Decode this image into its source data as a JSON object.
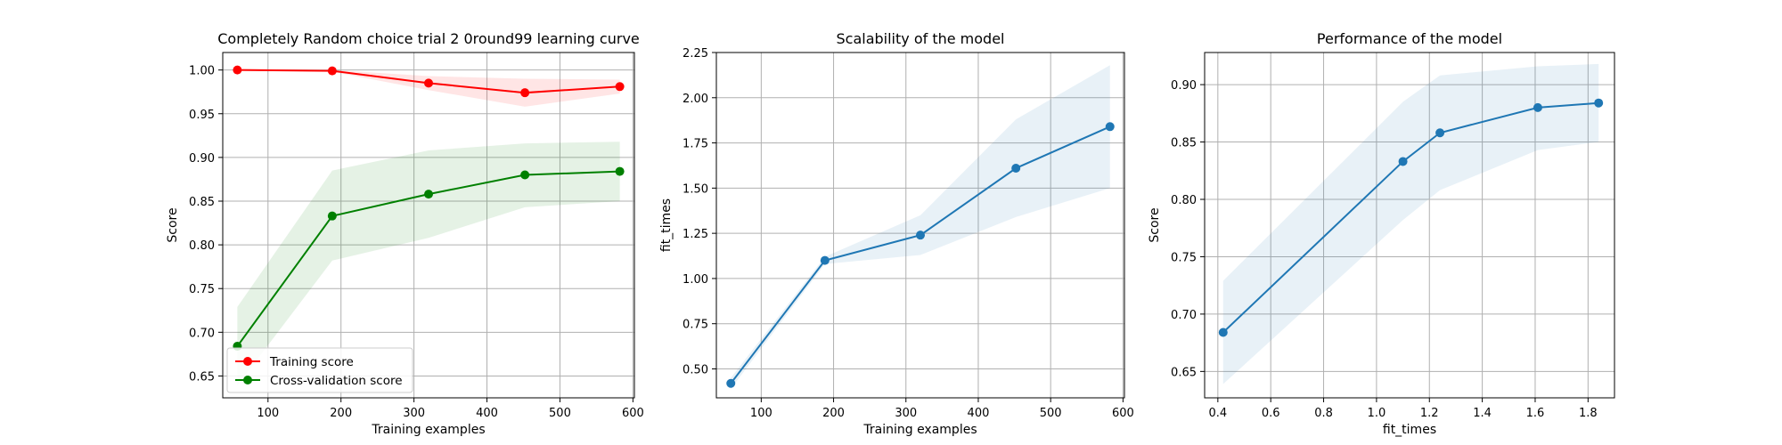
{
  "chart_data": [
    {
      "type": "line",
      "title": "Completely Random choice trial 2 0round99 learning curve",
      "xlabel": "Training examples",
      "ylabel": "Score",
      "xlim": [
        38,
        602
      ],
      "ylim": [
        0.625,
        1.02
      ],
      "xticks": [
        100,
        200,
        300,
        400,
        500,
        600
      ],
      "yticks": [
        0.65,
        0.7,
        0.75,
        0.8,
        0.85,
        0.9,
        0.95,
        1.0
      ],
      "grid": true,
      "legend": {
        "position": "lower-left"
      },
      "series": [
        {
          "name": "Training score",
          "color": "#ff0000",
          "x": [
            58,
            188,
            320,
            452,
            582
          ],
          "y": [
            1.0,
            0.999,
            0.985,
            0.974,
            0.981
          ],
          "band_lower": [
            1.0,
            0.998,
            0.977,
            0.958,
            0.973
          ],
          "band_upper": [
            1.0,
            1.0,
            0.993,
            0.99,
            0.989
          ]
        },
        {
          "name": "Cross-validation score",
          "color": "#008000",
          "x": [
            58,
            188,
            320,
            452,
            582
          ],
          "y": [
            0.684,
            0.833,
            0.858,
            0.88,
            0.884
          ],
          "band_lower": [
            0.639,
            0.782,
            0.808,
            0.843,
            0.85
          ],
          "band_upper": [
            0.729,
            0.885,
            0.908,
            0.916,
            0.918
          ]
        }
      ]
    },
    {
      "type": "line",
      "title": "Scalability of the model",
      "xlabel": "Training examples",
      "ylabel": "fit_times",
      "xlim": [
        38,
        602
      ],
      "ylim": [
        0.34,
        2.25
      ],
      "xticks": [
        100,
        200,
        300,
        400,
        500,
        600
      ],
      "yticks": [
        0.5,
        0.75,
        1.0,
        1.25,
        1.5,
        1.75,
        2.0,
        2.25
      ],
      "grid": true,
      "series": [
        {
          "color": "#1f77b4",
          "x": [
            58,
            188,
            320,
            452,
            582
          ],
          "y": [
            0.42,
            1.1,
            1.24,
            1.61,
            1.84
          ],
          "band_lower": [
            0.39,
            1.08,
            1.13,
            1.34,
            1.5
          ],
          "band_upper": [
            0.45,
            1.12,
            1.35,
            1.88,
            2.18
          ]
        }
      ]
    },
    {
      "type": "line",
      "title": "Performance of the model",
      "xlabel": "fit_times",
      "ylabel": "Score",
      "xlim": [
        0.35,
        1.9
      ],
      "ylim": [
        0.627,
        0.928
      ],
      "xticks": [
        0.4,
        0.6,
        0.8,
        1.0,
        1.2,
        1.4,
        1.6,
        1.8
      ],
      "yticks": [
        0.65,
        0.7,
        0.75,
        0.8,
        0.85,
        0.9
      ],
      "grid": true,
      "series": [
        {
          "color": "#1f77b4",
          "x": [
            0.42,
            1.1,
            1.24,
            1.61,
            1.84
          ],
          "y": [
            0.684,
            0.833,
            0.858,
            0.88,
            0.884
          ],
          "band_lower": [
            0.639,
            0.782,
            0.808,
            0.843,
            0.85
          ],
          "band_upper": [
            0.729,
            0.885,
            0.908,
            0.916,
            0.918
          ]
        }
      ]
    }
  ]
}
